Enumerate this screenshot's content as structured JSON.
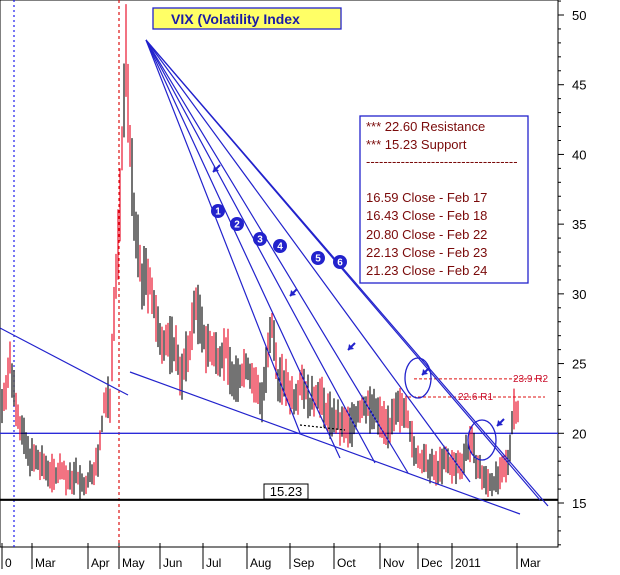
{
  "chart_data": {
    "type": "bar",
    "title": "VIX (Volatility Index",
    "y_ticks": [
      15,
      20,
      25,
      30,
      35,
      40,
      45,
      50
    ],
    "ylim": [
      11,
      51.5
    ],
    "months": [
      "0",
      "Mar",
      "Apr",
      "May",
      "Jun",
      "Jul",
      "Aug",
      "Sep",
      "Oct",
      "Nov",
      "Dec",
      "2011",
      "Mar"
    ],
    "support_label": "15.23",
    "levels": [
      {
        "value": 22.6,
        "label": "22.6 R1"
      },
      {
        "value": 23.9,
        "label": "23.9 R2"
      }
    ],
    "annotations": [
      "*** 22.60 Resistance",
      "*** 15.23 Support",
      "-----------------------------------",
      "16.59 Close - Feb 17",
      "16.43 Close - Feb 18",
      "20.80 Close - Feb 22",
      "22.13 Close - Feb 23",
      "21.23 Close - Feb 24"
    ],
    "fan_numbers": [
      "1",
      "2",
      "3",
      "4",
      "5",
      "6"
    ],
    "anchors": [
      [
        0,
        22.0
      ],
      [
        4,
        25.0
      ],
      [
        9,
        20.5
      ],
      [
        13,
        18.5
      ],
      [
        17,
        18.0
      ],
      [
        22,
        17.5
      ],
      [
        26,
        17.0
      ],
      [
        30,
        17.5
      ],
      [
        33,
        16.5
      ],
      [
        37,
        17.0
      ],
      [
        41,
        16.0
      ],
      [
        44,
        17.0
      ],
      [
        48,
        18.0
      ],
      [
        51,
        22.0
      ],
      [
        54,
        22.5
      ],
      [
        56,
        29.0
      ],
      [
        59,
        36.0
      ],
      [
        61,
        44.0
      ],
      [
        62,
        47.5
      ],
      [
        64,
        41.0
      ],
      [
        66,
        35.0
      ],
      [
        70,
        31.0
      ],
      [
        74,
        31.0
      ],
      [
        78,
        27.0
      ],
      [
        83,
        26.5
      ],
      [
        87,
        26.0
      ],
      [
        90,
        24.0
      ],
      [
        94,
        26.5
      ],
      [
        97,
        29.5
      ],
      [
        100,
        27.0
      ],
      [
        104,
        26.0
      ],
      [
        108,
        25.5
      ],
      [
        112,
        26.0
      ],
      [
        116,
        23.5
      ],
      [
        119,
        24.0
      ],
      [
        122,
        25.0
      ],
      [
        126,
        23.5
      ],
      [
        130,
        22.5
      ],
      [
        135,
        27.5
      ],
      [
        138,
        24.0
      ],
      [
        142,
        23.5
      ],
      [
        146,
        22.5
      ],
      [
        150,
        24.0
      ],
      [
        154,
        22.0
      ],
      [
        158,
        23.0
      ],
      [
        162,
        21.5
      ],
      [
        166,
        21.0
      ],
      [
        170,
        20.5
      ],
      [
        174,
        20.5
      ],
      [
        178,
        21.5
      ],
      [
        182,
        22.0
      ],
      [
        186,
        21.5
      ],
      [
        190,
        21.0
      ],
      [
        194,
        20.5
      ],
      [
        198,
        21.5
      ],
      [
        202,
        22.0
      ],
      [
        206,
        18.5
      ],
      [
        210,
        18.0
      ],
      [
        214,
        17.5
      ],
      [
        218,
        17.5
      ],
      [
        222,
        18.0
      ],
      [
        226,
        17.5
      ],
      [
        230,
        18.0
      ],
      [
        234,
        19.5
      ],
      [
        238,
        17.5
      ],
      [
        242,
        16.5
      ],
      [
        246,
        16.5
      ],
      [
        250,
        17.0
      ],
      [
        253,
        18.0
      ],
      [
        256,
        22.0
      ],
      [
        258,
        21.5
      ]
    ]
  }
}
